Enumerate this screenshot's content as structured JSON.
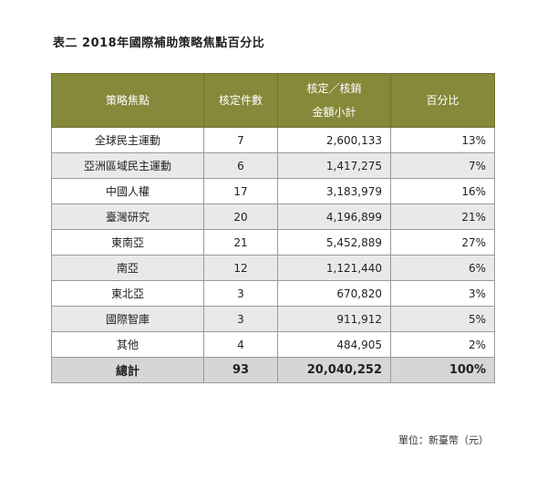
{
  "title": "表二  2018年國際補助策略焦點百分比",
  "headers": {
    "focus": "策略焦點",
    "count": "核定件數",
    "amount_line1": "核定／核銷",
    "amount_line2": "金額小計",
    "percent": "百分比"
  },
  "rows": [
    {
      "focus": "全球民主運動",
      "count": "7",
      "amount": "2,600,133",
      "percent": "13%"
    },
    {
      "focus": "亞洲區域民主運動",
      "count": "6",
      "amount": "1,417,275",
      "percent": "7%"
    },
    {
      "focus": "中國人權",
      "count": "17",
      "amount": "3,183,979",
      "percent": "16%"
    },
    {
      "focus": "臺灣研究",
      "count": "20",
      "amount": "4,196,899",
      "percent": "21%"
    },
    {
      "focus": "東南亞",
      "count": "21",
      "amount": "5,452,889",
      "percent": "27%"
    },
    {
      "focus": "南亞",
      "count": "12",
      "amount": "1,121,440",
      "percent": "6%"
    },
    {
      "focus": "東北亞",
      "count": "3",
      "amount": "670,820",
      "percent": "3%"
    },
    {
      "focus": "國際智庫",
      "count": "3",
      "amount": "911,912",
      "percent": "5%"
    },
    {
      "focus": "其他",
      "count": "4",
      "amount": "484,905",
      "percent": "2%"
    }
  ],
  "total": {
    "focus": "總計",
    "count": "93",
    "amount": "20,040,252",
    "percent": "100%"
  },
  "unit": "單位：新臺幣（元）",
  "colors": {
    "header_bg": "#86893a",
    "stripe": "#e9e9e9",
    "total_bg": "#d6d6d6"
  }
}
